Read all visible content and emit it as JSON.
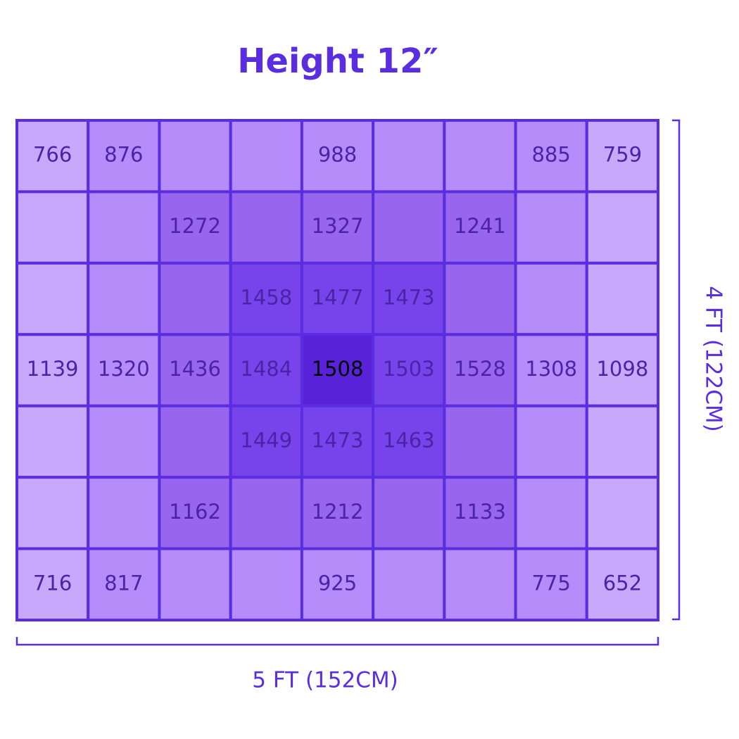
{
  "title": "Height 12″",
  "grid": {
    "rows": [
      [
        766,
        876,
        null,
        null,
        988,
        null,
        null,
        885,
        759
      ],
      [
        null,
        null,
        1272,
        null,
        1327,
        null,
        1241,
        null,
        null
      ],
      [
        null,
        null,
        null,
        1458,
        1477,
        1473,
        null,
        null,
        null
      ],
      [
        1139,
        1320,
        1436,
        1484,
        1508,
        1503,
        1528,
        1308,
        1098
      ],
      [
        null,
        null,
        null,
        1449,
        1473,
        1463,
        null,
        null,
        null
      ],
      [
        null,
        null,
        1162,
        null,
        1212,
        null,
        1133,
        null,
        null
      ],
      [
        716,
        817,
        null,
        null,
        925,
        null,
        null,
        775,
        652
      ]
    ]
  },
  "width_label": "5 FT (152CM)",
  "height_label": "4 FT (122CM)"
}
